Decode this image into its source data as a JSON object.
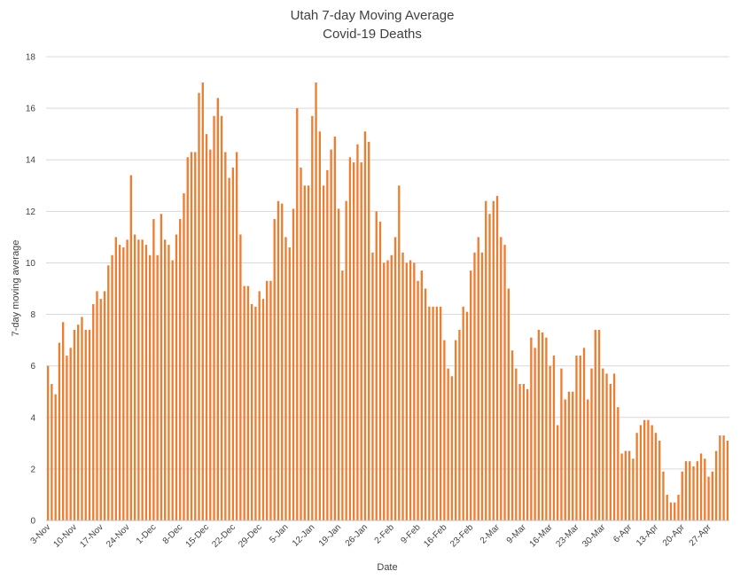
{
  "chart_data": {
    "type": "bar",
    "title": "Utah 7-day Moving Average",
    "subtitle": "Covid-19 Deaths",
    "xlabel": "Date",
    "ylabel": "7-day moving average",
    "ylim": [
      0,
      18
    ],
    "yticks": [
      0,
      2,
      4,
      6,
      8,
      10,
      12,
      14,
      16,
      18
    ],
    "grid": true,
    "legend": "none",
    "bar_color": "#ED7D31",
    "x_tick_labels": [
      "3-Nov",
      "10-Nov",
      "17-Nov",
      "24-Nov",
      "1-Dec",
      "8-Dec",
      "15-Dec",
      "22-Dec",
      "29-Dec",
      "5-Jan",
      "12-Jan",
      "19-Jan",
      "26-Jan",
      "2-Feb",
      "9-Feb",
      "16-Feb",
      "23-Feb",
      "2-Mar",
      "9-Mar",
      "16-Mar",
      "23-Mar",
      "30-Mar",
      "6-Apr",
      "13-Apr",
      "20-Apr",
      "27-Apr"
    ],
    "x_start": "3-Nov",
    "values": [
      6.0,
      5.3,
      4.9,
      6.9,
      7.7,
      6.4,
      6.7,
      7.4,
      7.6,
      7.9,
      7.4,
      7.4,
      8.4,
      8.9,
      8.6,
      8.9,
      9.9,
      10.3,
      11.0,
      10.7,
      10.6,
      10.9,
      13.4,
      11.1,
      10.9,
      10.9,
      10.7,
      10.3,
      11.7,
      10.3,
      11.9,
      10.9,
      10.7,
      10.1,
      11.1,
      11.7,
      12.7,
      14.1,
      14.3,
      14.3,
      16.6,
      17.0,
      15.0,
      14.4,
      15.7,
      16.4,
      15.7,
      14.3,
      13.3,
      13.7,
      14.3,
      11.1,
      9.1,
      9.1,
      8.4,
      8.3,
      8.9,
      8.6,
      9.3,
      9.3,
      11.7,
      12.4,
      12.3,
      11.0,
      10.6,
      12.1,
      16.0,
      13.7,
      13.0,
      13.0,
      15.7,
      17.0,
      15.1,
      13.0,
      13.6,
      14.4,
      14.9,
      12.1,
      9.7,
      12.4,
      14.1,
      13.9,
      14.6,
      13.9,
      15.1,
      14.7,
      10.4,
      12.0,
      11.6,
      10.0,
      10.1,
      10.3,
      11.0,
      13.0,
      10.4,
      10.0,
      10.1,
      10.0,
      9.3,
      9.7,
      9.0,
      8.3,
      8.3,
      8.3,
      8.3,
      7.0,
      5.9,
      5.6,
      7.0,
      7.4,
      8.3,
      8.1,
      9.7,
      10.4,
      11.0,
      10.4,
      12.4,
      11.9,
      12.4,
      12.6,
      11.0,
      10.7,
      9.0,
      6.6,
      5.9,
      5.3,
      5.3,
      5.1,
      7.1,
      6.7,
      7.4,
      7.3,
      7.1,
      6.0,
      6.4,
      3.7,
      5.9,
      4.7,
      5.0,
      5.0,
      6.4,
      6.4,
      6.7,
      4.7,
      5.9,
      7.4,
      7.4,
      5.9,
      5.7,
      5.3,
      5.7,
      4.4,
      2.6,
      2.7,
      2.7,
      2.4,
      3.4,
      3.7,
      3.9,
      3.9,
      3.7,
      3.4,
      3.1,
      1.9,
      1.0,
      0.7,
      0.7,
      1.0,
      1.9,
      2.3,
      2.3,
      2.1,
      2.3,
      2.6,
      2.4,
      1.7,
      1.9,
      2.7,
      3.3,
      3.3,
      3.1
    ]
  }
}
